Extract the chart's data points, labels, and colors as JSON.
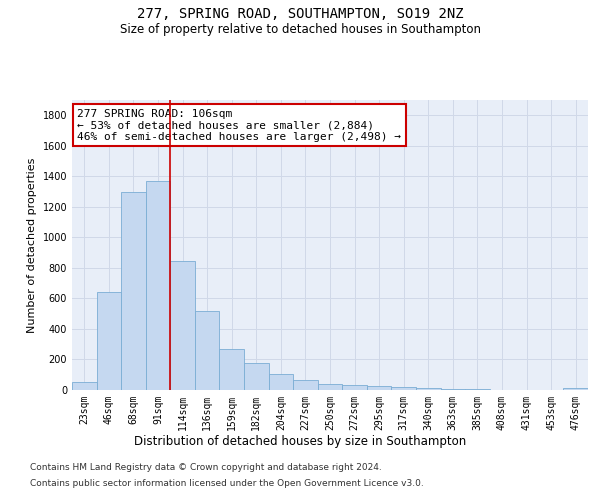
{
  "title_line1": "277, SPRING ROAD, SOUTHAMPTON, SO19 2NZ",
  "title_line2": "Size of property relative to detached houses in Southampton",
  "xlabel": "Distribution of detached houses by size in Southampton",
  "ylabel": "Number of detached properties",
  "categories": [
    "23sqm",
    "46sqm",
    "68sqm",
    "91sqm",
    "114sqm",
    "136sqm",
    "159sqm",
    "182sqm",
    "204sqm",
    "227sqm",
    "250sqm",
    "272sqm",
    "295sqm",
    "317sqm",
    "340sqm",
    "363sqm",
    "385sqm",
    "408sqm",
    "431sqm",
    "453sqm",
    "476sqm"
  ],
  "values": [
    50,
    640,
    1300,
    1370,
    845,
    520,
    270,
    175,
    105,
    65,
    38,
    35,
    28,
    18,
    10,
    5,
    5,
    3,
    2,
    1,
    10
  ],
  "bar_color": "#c5d8f0",
  "bar_edge_color": "#7aadd4",
  "vline_color": "#cc0000",
  "vline_x_index": 4,
  "annotation_text": "277 SPRING ROAD: 106sqm\n← 53% of detached houses are smaller (2,884)\n46% of semi-detached houses are larger (2,498) →",
  "annotation_box_color": "#ffffff",
  "annotation_box_edge_color": "#cc0000",
  "ylim": [
    0,
    1900
  ],
  "yticks": [
    0,
    200,
    400,
    600,
    800,
    1000,
    1200,
    1400,
    1600,
    1800
  ],
  "grid_color": "#d0d8e8",
  "bg_color": "#e8eef8",
  "footer_line1": "Contains HM Land Registry data © Crown copyright and database right 2024.",
  "footer_line2": "Contains public sector information licensed under the Open Government Licence v3.0.",
  "title_fontsize": 10,
  "subtitle_fontsize": 8.5,
  "xlabel_fontsize": 8.5,
  "ylabel_fontsize": 8,
  "tick_fontsize": 7,
  "annotation_fontsize": 8,
  "footer_fontsize": 6.5
}
